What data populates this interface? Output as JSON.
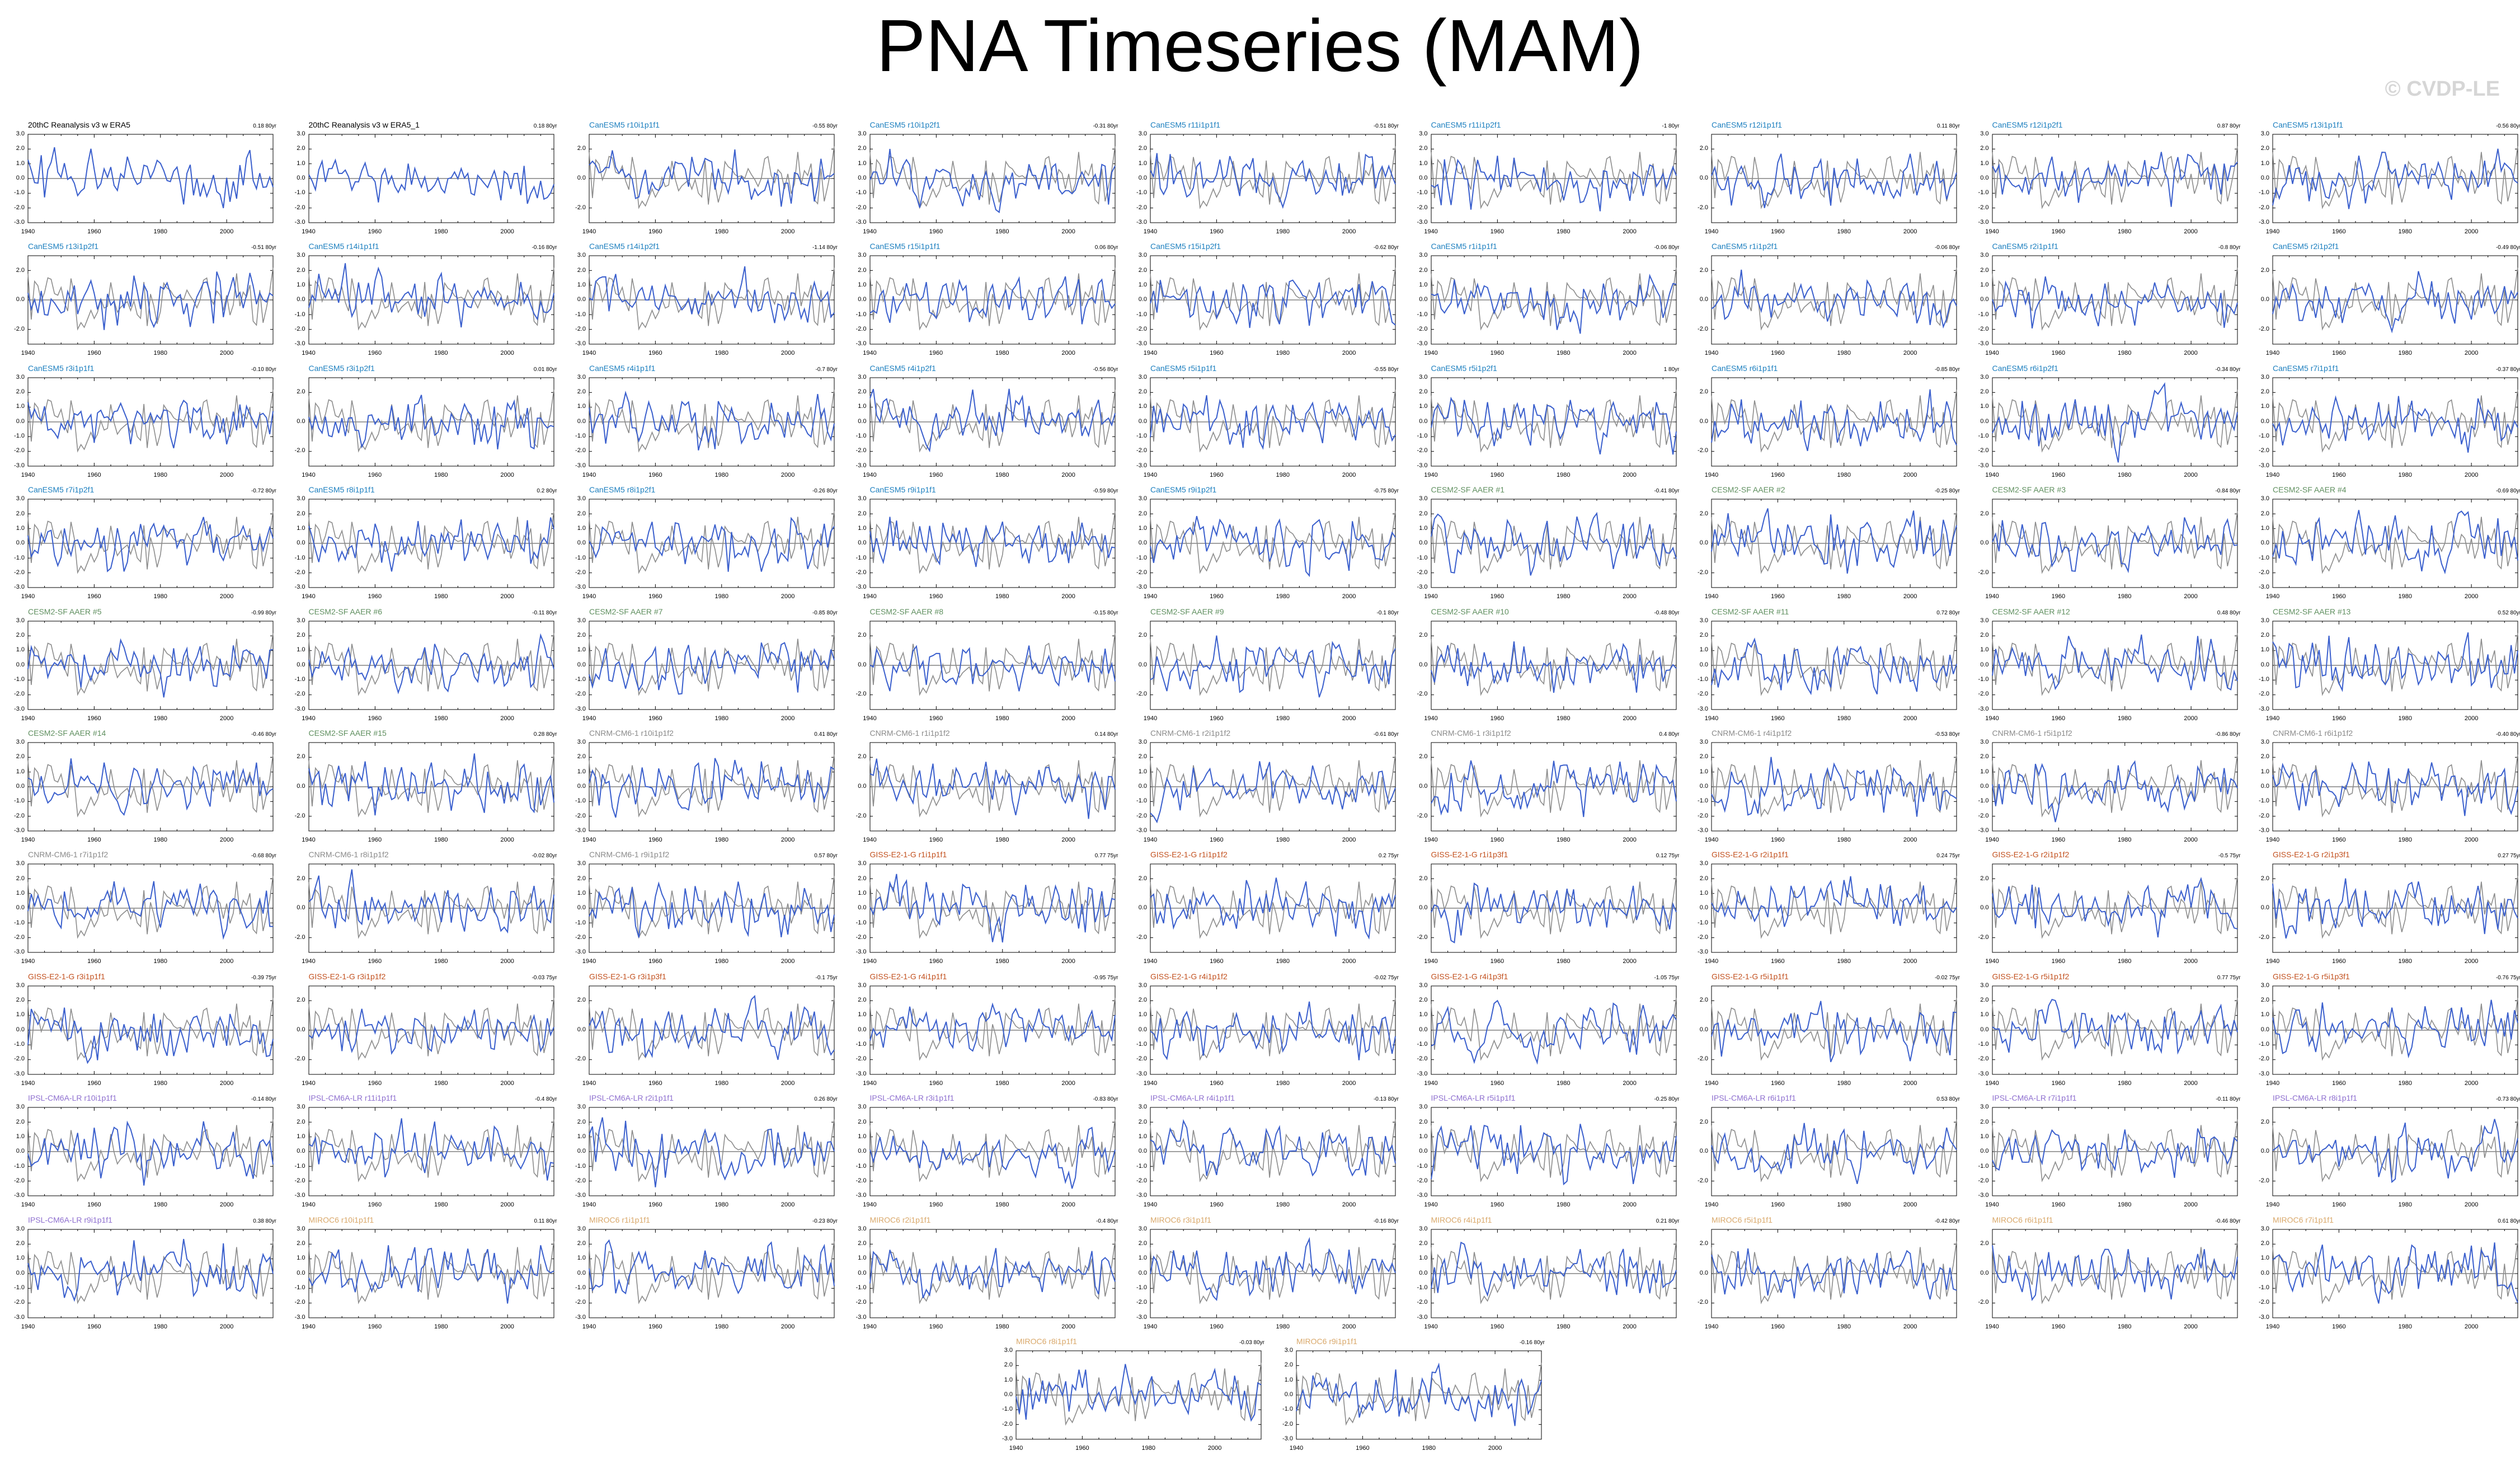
{
  "title": "PNA Timeseries (MAM)",
  "watermark": "© CVDP-LE",
  "colors": {
    "model_line": "#3a5fcd",
    "obs_line": "#8c8c8c",
    "zero_line": "#000000",
    "label_20thC": "#000000",
    "label_CanESM5": "#1c7fbf",
    "label_CESM2": "#5f8f5f",
    "label_CNRM": "#8a8a8a",
    "label_GISS": "#c2501e",
    "label_IPSL": "#8e6fcf",
    "label_MIROC": "#d9a86a"
  },
  "chart_data": {
    "type": "line",
    "x_range": [
      1940,
      2014
    ],
    "x_ticks": [
      "1940",
      "1960",
      "1980",
      "2000"
    ],
    "y_ticks_a": [
      "3.0",
      "2.0",
      "1.0",
      "0.0",
      "-1.0",
      "-2.0",
      "-3.0"
    ],
    "y_ticks_b": [
      "2.0",
      "0.0",
      "-2.0"
    ],
    "ylim": [
      -3.0,
      3.0
    ],
    "panels": [
      {
        "name": "20thC Reanalysis v3 w ERA5",
        "trend": "0.18 80yr",
        "group": "20thC",
        "seed": 1,
        "ticks": "a",
        "obs": false
      },
      {
        "name": "20thC Reanalysis v3 w ERA5_1",
        "trend": "0.18 80yr",
        "group": "20thC",
        "seed": 2,
        "ticks": "a",
        "obs": false
      },
      {
        "name": "CanESM5 r10i1p1f1",
        "trend": "-0.55 80yr",
        "group": "CanESM5",
        "seed": 3,
        "ticks": "b",
        "obs": true
      },
      {
        "name": "CanESM5 r10i1p2f1",
        "trend": "-0.31 80yr",
        "group": "CanESM5",
        "seed": 4,
        "ticks": "a",
        "obs": true
      },
      {
        "name": "CanESM5 r11i1p1f1",
        "trend": "-0.51 80yr",
        "group": "CanESM5",
        "seed": 5,
        "ticks": "a",
        "obs": true
      },
      {
        "name": "CanESM5 r11i1p2f1",
        "trend": "-1 80yr",
        "group": "CanESM5",
        "seed": 6,
        "ticks": "a",
        "obs": true
      },
      {
        "name": "CanESM5 r12i1p1f1",
        "trend": "0.11 80yr",
        "group": "CanESM5",
        "seed": 7,
        "ticks": "b",
        "obs": true
      },
      {
        "name": "CanESM5 r12i1p2f1",
        "trend": "0.87 80yr",
        "group": "CanESM5",
        "seed": 8,
        "ticks": "a",
        "obs": true
      },
      {
        "name": "CanESM5 r13i1p1f1",
        "trend": "-0.56 80yr",
        "group": "CanESM5",
        "seed": 9,
        "ticks": "a",
        "obs": true
      },
      {
        "name": "CanESM5 r13i1p2f1",
        "trend": "-0.51 80yr",
        "group": "CanESM5",
        "seed": 10,
        "ticks": "b",
        "obs": true
      },
      {
        "name": "CanESM5 r14i1p1f1",
        "trend": "-0.16 80yr",
        "group": "CanESM5",
        "seed": 11,
        "ticks": "a",
        "obs": true
      },
      {
        "name": "CanESM5 r14i1p2f1",
        "trend": "-1.14 80yr",
        "group": "CanESM5",
        "seed": 12,
        "ticks": "a",
        "obs": true
      },
      {
        "name": "CanESM5 r15i1p1f1",
        "trend": "0.06 80yr",
        "group": "CanESM5",
        "seed": 13,
        "ticks": "a",
        "obs": true
      },
      {
        "name": "CanESM5 r15i1p2f1",
        "trend": "-0.62 80yr",
        "group": "CanESM5",
        "seed": 14,
        "ticks": "a",
        "obs": true
      },
      {
        "name": "CanESM5 r1i1p1f1",
        "trend": "-0.06 80yr",
        "group": "CanESM5",
        "seed": 15,
        "ticks": "a",
        "obs": true
      },
      {
        "name": "CanESM5 r1i1p2f1",
        "trend": "-0.06 80yr",
        "group": "CanESM5",
        "seed": 16,
        "ticks": "b",
        "obs": true
      },
      {
        "name": "CanESM5 r2i1p1f1",
        "trend": "-0.8 80yr",
        "group": "CanESM5",
        "seed": 17,
        "ticks": "a",
        "obs": true
      },
      {
        "name": "CanESM5 r2i1p2f1",
        "trend": "-0.49 80yr",
        "group": "CanESM5",
        "seed": 18,
        "ticks": "b",
        "obs": true
      },
      {
        "name": "CanESM5 r3i1p1f1",
        "trend": "-0.10 80yr",
        "group": "CanESM5",
        "seed": 19,
        "ticks": "a",
        "obs": true
      },
      {
        "name": "CanESM5 r3i1p2f1",
        "trend": "0.01 80yr",
        "group": "CanESM5",
        "seed": 20,
        "ticks": "b",
        "obs": true
      },
      {
        "name": "CanESM5 r4i1p1f1",
        "trend": "-0.7 80yr",
        "group": "CanESM5",
        "seed": 21,
        "ticks": "a",
        "obs": true
      },
      {
        "name": "CanESM5 r4i1p2f1",
        "trend": "-0.56 80yr",
        "group": "CanESM5",
        "seed": 22,
        "ticks": "a",
        "obs": true
      },
      {
        "name": "CanESM5 r5i1p1f1",
        "trend": "-0.55 80yr",
        "group": "CanESM5",
        "seed": 23,
        "ticks": "a",
        "obs": true
      },
      {
        "name": "CanESM5 r5i1p2f1",
        "trend": "1 80yr",
        "group": "CanESM5",
        "seed": 24,
        "ticks": "a",
        "obs": true
      },
      {
        "name": "CanESM5 r6i1p1f1",
        "trend": "-0.85 80yr",
        "group": "CanESM5",
        "seed": 25,
        "ticks": "b",
        "obs": true
      },
      {
        "name": "CanESM5 r6i1p2f1",
        "trend": "-0.34 80yr",
        "group": "CanESM5",
        "seed": 26,
        "ticks": "a",
        "obs": true
      },
      {
        "name": "CanESM5 r7i1p1f1",
        "trend": "-0.37 80yr",
        "group": "CanESM5",
        "seed": 27,
        "ticks": "a",
        "obs": true
      },
      {
        "name": "CanESM5 r7i1p2f1",
        "trend": "-0.72 80yr",
        "group": "CanESM5",
        "seed": 28,
        "ticks": "a",
        "obs": true
      },
      {
        "name": "CanESM5 r8i1p1f1",
        "trend": "0.2 80yr",
        "group": "CanESM5",
        "seed": 29,
        "ticks": "a",
        "obs": true
      },
      {
        "name": "CanESM5 r8i1p2f1",
        "trend": "-0.26 80yr",
        "group": "CanESM5",
        "seed": 30,
        "ticks": "a",
        "obs": true
      },
      {
        "name": "CanESM5 r9i1p1f1",
        "trend": "-0.59 80yr",
        "group": "CanESM5",
        "seed": 31,
        "ticks": "a",
        "obs": true
      },
      {
        "name": "CanESM5 r9i1p2f1",
        "trend": "-0.75 80yr",
        "group": "CanESM5",
        "seed": 32,
        "ticks": "a",
        "obs": true
      },
      {
        "name": "CESM2-SF AAER #1",
        "trend": "-0.41 80yr",
        "group": "CESM2",
        "seed": 33,
        "ticks": "a",
        "obs": true
      },
      {
        "name": "CESM2-SF AAER #2",
        "trend": "-0.25 80yr",
        "group": "CESM2",
        "seed": 34,
        "ticks": "b",
        "obs": true
      },
      {
        "name": "CESM2-SF AAER #3",
        "trend": "-0.84 80yr",
        "group": "CESM2",
        "seed": 35,
        "ticks": "b",
        "obs": true
      },
      {
        "name": "CESM2-SF AAER #4",
        "trend": "-0.69 80yr",
        "group": "CESM2",
        "seed": 36,
        "ticks": "a",
        "obs": true
      },
      {
        "name": "CESM2-SF AAER #5",
        "trend": "-0.99 80yr",
        "group": "CESM2",
        "seed": 37,
        "ticks": "a",
        "obs": true
      },
      {
        "name": "CESM2-SF AAER #6",
        "trend": "-0.11 80yr",
        "group": "CESM2",
        "seed": 38,
        "ticks": "a",
        "obs": true
      },
      {
        "name": "CESM2-SF AAER #7",
        "trend": "-0.85 80yr",
        "group": "CESM2",
        "seed": 39,
        "ticks": "a",
        "obs": true
      },
      {
        "name": "CESM2-SF AAER #8",
        "trend": "-0.15 80yr",
        "group": "CESM2",
        "seed": 40,
        "ticks": "b",
        "obs": true
      },
      {
        "name": "CESM2-SF AAER #9",
        "trend": "-0.1 80yr",
        "group": "CESM2",
        "seed": 41,
        "ticks": "b",
        "obs": true
      },
      {
        "name": "CESM2-SF AAER #10",
        "trend": "-0.48 80yr",
        "group": "CESM2",
        "seed": 42,
        "ticks": "b",
        "obs": true
      },
      {
        "name": "CESM2-SF AAER #11",
        "trend": "0.72 80yr",
        "group": "CESM2",
        "seed": 43,
        "ticks": "a",
        "obs": true
      },
      {
        "name": "CESM2-SF AAER #12",
        "trend": "0.48 80yr",
        "group": "CESM2",
        "seed": 44,
        "ticks": "a",
        "obs": true
      },
      {
        "name": "CESM2-SF AAER #13",
        "trend": "0.52 80yr",
        "group": "CESM2",
        "seed": 45,
        "ticks": "a",
        "obs": true
      },
      {
        "name": "CESM2-SF AAER #14",
        "trend": "-0.46 80yr",
        "group": "CESM2",
        "seed": 46,
        "ticks": "a",
        "obs": true
      },
      {
        "name": "CESM2-SF AAER #15",
        "trend": "0.28 80yr",
        "group": "CESM2",
        "seed": 47,
        "ticks": "b",
        "obs": true
      },
      {
        "name": "CNRM-CM6-1 r10i1p1f2",
        "trend": "0.41 80yr",
        "group": "CNRM",
        "seed": 48,
        "ticks": "a",
        "obs": true
      },
      {
        "name": "CNRM-CM6-1 r1i1p1f2",
        "trend": "0.14 80yr",
        "group": "CNRM",
        "seed": 49,
        "ticks": "b",
        "obs": true
      },
      {
        "name": "CNRM-CM6-1 r2i1p1f2",
        "trend": "-0.61 80yr",
        "group": "CNRM",
        "seed": 50,
        "ticks": "a",
        "obs": true
      },
      {
        "name": "CNRM-CM6-1 r3i1p1f2",
        "trend": "0.4 80yr",
        "group": "CNRM",
        "seed": 51,
        "ticks": "b",
        "obs": true
      },
      {
        "name": "CNRM-CM6-1 r4i1p1f2",
        "trend": "-0.53 80yr",
        "group": "CNRM",
        "seed": 52,
        "ticks": "a",
        "obs": true
      },
      {
        "name": "CNRM-CM6-1 r5i1p1f2",
        "trend": "-0.86 80yr",
        "group": "CNRM",
        "seed": 53,
        "ticks": "a",
        "obs": true
      },
      {
        "name": "CNRM-CM6-1 r6i1p1f2",
        "trend": "-0.40 80yr",
        "group": "CNRM",
        "seed": 54,
        "ticks": "a",
        "obs": true
      },
      {
        "name": "CNRM-CM6-1 r7i1p1f2",
        "trend": "-0.68 80yr",
        "group": "CNRM",
        "seed": 55,
        "ticks": "a",
        "obs": true
      },
      {
        "name": "CNRM-CM6-1 r8i1p1f2",
        "trend": "-0.02 80yr",
        "group": "CNRM",
        "seed": 56,
        "ticks": "b",
        "obs": true
      },
      {
        "name": "CNRM-CM6-1 r9i1p1f2",
        "trend": "0.57 80yr",
        "group": "CNRM",
        "seed": 57,
        "ticks": "a",
        "obs": true
      },
      {
        "name": "GISS-E2-1-G r1i1p1f1",
        "trend": "0.77 75yr",
        "group": "GISS",
        "seed": 58,
        "ticks": "a",
        "obs": true
      },
      {
        "name": "GISS-E2-1-G r1i1p1f2",
        "trend": "0.2 75yr",
        "group": "GISS",
        "seed": 59,
        "ticks": "b",
        "obs": true
      },
      {
        "name": "GISS-E2-1-G r1i1p3f1",
        "trend": "0.12 75yr",
        "group": "GISS",
        "seed": 60,
        "ticks": "b",
        "obs": true
      },
      {
        "name": "GISS-E2-1-G r2i1p1f1",
        "trend": "0.24 75yr",
        "group": "GISS",
        "seed": 61,
        "ticks": "a",
        "obs": true
      },
      {
        "name": "GISS-E2-1-G r2i1p1f2",
        "trend": "-0.5 75yr",
        "group": "GISS",
        "seed": 62,
        "ticks": "b",
        "obs": true
      },
      {
        "name": "GISS-E2-1-G r2i1p3f1",
        "trend": "0.27 75yr",
        "group": "GISS",
        "seed": 63,
        "ticks": "b",
        "obs": true
      },
      {
        "name": "GISS-E2-1-G r3i1p1f1",
        "trend": "-0.39 75yr",
        "group": "GISS",
        "seed": 64,
        "ticks": "a",
        "obs": true
      },
      {
        "name": "GISS-E2-1-G r3i1p1f2",
        "trend": "-0.03 75yr",
        "group": "GISS",
        "seed": 65,
        "ticks": "b",
        "obs": true
      },
      {
        "name": "GISS-E2-1-G r3i1p3f1",
        "trend": "-0.1 75yr",
        "group": "GISS",
        "seed": 66,
        "ticks": "b",
        "obs": true
      },
      {
        "name": "GISS-E2-1-G r4i1p1f1",
        "trend": "-0.95 75yr",
        "group": "GISS",
        "seed": 67,
        "ticks": "a",
        "obs": true
      },
      {
        "name": "GISS-E2-1-G r4i1p1f2",
        "trend": "-0.02 75yr",
        "group": "GISS",
        "seed": 68,
        "ticks": "a",
        "obs": true
      },
      {
        "name": "GISS-E2-1-G r4i1p3f1",
        "trend": "-1.05 75yr",
        "group": "GISS",
        "seed": 69,
        "ticks": "a",
        "obs": true
      },
      {
        "name": "GISS-E2-1-G r5i1p1f1",
        "trend": "-0.02 75yr",
        "group": "GISS",
        "seed": 70,
        "ticks": "b",
        "obs": true
      },
      {
        "name": "GISS-E2-1-G r5i1p1f2",
        "trend": "0.77 75yr",
        "group": "GISS",
        "seed": 71,
        "ticks": "a",
        "obs": true
      },
      {
        "name": "GISS-E2-1-G r5i1p3f1",
        "trend": "-0.76 75yr",
        "group": "GISS",
        "seed": 72,
        "ticks": "a",
        "obs": true
      },
      {
        "name": "IPSL-CM6A-LR r10i1p1f1",
        "trend": "-0.14 80yr",
        "group": "IPSL",
        "seed": 73,
        "ticks": "a",
        "obs": true
      },
      {
        "name": "IPSL-CM6A-LR r11i1p1f1",
        "trend": "-0.4 80yr",
        "group": "IPSL",
        "seed": 74,
        "ticks": "a",
        "obs": true
      },
      {
        "name": "IPSL-CM6A-LR r2i1p1f1",
        "trend": "0.26 80yr",
        "group": "IPSL",
        "seed": 75,
        "ticks": "a",
        "obs": true
      },
      {
        "name": "IPSL-CM6A-LR r3i1p1f1",
        "trend": "-0.83 80yr",
        "group": "IPSL",
        "seed": 76,
        "ticks": "a",
        "obs": true
      },
      {
        "name": "IPSL-CM6A-LR r4i1p1f1",
        "trend": "-0.13 80yr",
        "group": "IPSL",
        "seed": 77,
        "ticks": "a",
        "obs": true
      },
      {
        "name": "IPSL-CM6A-LR r5i1p1f1",
        "trend": "-0.25 80yr",
        "group": "IPSL",
        "seed": 78,
        "ticks": "a",
        "obs": true
      },
      {
        "name": "IPSL-CM6A-LR r6i1p1f1",
        "trend": "0.53 80yr",
        "group": "IPSL",
        "seed": 79,
        "ticks": "b",
        "obs": true
      },
      {
        "name": "IPSL-CM6A-LR r7i1p1f1",
        "trend": "-0.11 80yr",
        "group": "IPSL",
        "seed": 80,
        "ticks": "a",
        "obs": true
      },
      {
        "name": "IPSL-CM6A-LR r8i1p1f1",
        "trend": "-0.73 80yr",
        "group": "IPSL",
        "seed": 81,
        "ticks": "b",
        "obs": true
      },
      {
        "name": "IPSL-CM6A-LR r9i1p1f1",
        "trend": "0.38 80yr",
        "group": "IPSL",
        "seed": 82,
        "ticks": "a",
        "obs": true
      },
      {
        "name": "MIROC6 r10i1p1f1",
        "trend": "0.11 80yr",
        "group": "MIROC",
        "seed": 83,
        "ticks": "a",
        "obs": true
      },
      {
        "name": "MIROC6 r1i1p1f1",
        "trend": "-0.23 80yr",
        "group": "MIROC",
        "seed": 84,
        "ticks": "a",
        "obs": true
      },
      {
        "name": "MIROC6 r2i1p1f1",
        "trend": "-0.4 80yr",
        "group": "MIROC",
        "seed": 85,
        "ticks": "a",
        "obs": true
      },
      {
        "name": "MIROC6 r3i1p1f1",
        "trend": "-0.16 80yr",
        "group": "MIROC",
        "seed": 86,
        "ticks": "a",
        "obs": true
      },
      {
        "name": "MIROC6 r4i1p1f1",
        "trend": "0.21 80yr",
        "group": "MIROC",
        "seed": 87,
        "ticks": "a",
        "obs": true
      },
      {
        "name": "MIROC6 r5i1p1f1",
        "trend": "-0.42 80yr",
        "group": "MIROC",
        "seed": 88,
        "ticks": "b",
        "obs": true
      },
      {
        "name": "MIROC6 r6i1p1f1",
        "trend": "-0.46 80yr",
        "group": "MIROC",
        "seed": 89,
        "ticks": "b",
        "obs": true
      },
      {
        "name": "MIROC6 r7i1p1f1",
        "trend": "0.61 80yr",
        "group": "MIROC",
        "seed": 90,
        "ticks": "a",
        "obs": true
      },
      {
        "name": "MIROC6 r8i1p1f1",
        "trend": "-0.03 80yr",
        "group": "MIROC",
        "seed": 91,
        "ticks": "a",
        "obs": true
      },
      {
        "name": "MIROC6 r9i1p1f1",
        "trend": "-0.16 80yr",
        "group": "MIROC",
        "seed": 92,
        "ticks": "a",
        "obs": true
      }
    ]
  }
}
